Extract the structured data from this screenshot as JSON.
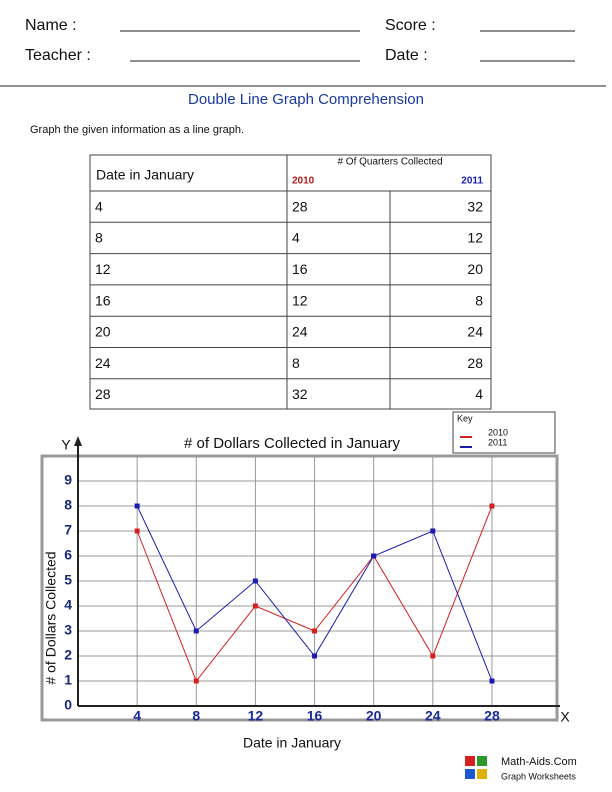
{
  "header": {
    "name_label": "Name :",
    "score_label": "Score :",
    "teacher_label": "Teacher :",
    "date_label": "Date :"
  },
  "title": "Double Line Graph Comprehension",
  "instructions": "Graph the given information as a line graph.",
  "table": {
    "date_header": "Date in January",
    "group_header": "# Of Quarters Collected",
    "col_2010": "2010",
    "col_2011": "2011",
    "rows": [
      [
        4,
        28,
        32
      ],
      [
        8,
        4,
        12
      ],
      [
        12,
        16,
        20
      ],
      [
        16,
        12,
        8
      ],
      [
        20,
        24,
        24
      ],
      [
        24,
        8,
        28
      ],
      [
        28,
        32,
        4
      ]
    ]
  },
  "chart_data": {
    "type": "line",
    "title": "# of Dollars Collected in January",
    "x_label": "Date in January",
    "y_label": "# of Dollars Collected",
    "y_axis_letter": "Y",
    "x_axis_letter": "X",
    "legend_title": "Key",
    "x": [
      4,
      8,
      12,
      16,
      20,
      24,
      28
    ],
    "series": [
      {
        "name": "2010",
        "color": "#d42020",
        "values": [
          7,
          1,
          4,
          3,
          6,
          2,
          8
        ]
      },
      {
        "name": "2011",
        "color": "#1a1ab0",
        "values": [
          8,
          3,
          5,
          2,
          6,
          7,
          1
        ]
      }
    ],
    "xlim": [
      0,
      32.4
    ],
    "ylim": [
      0,
      10
    ],
    "xticks": [
      4,
      8,
      12,
      16,
      20,
      24,
      28
    ],
    "yticks": [
      0,
      1,
      2,
      3,
      4,
      5,
      6,
      7,
      8,
      9
    ],
    "grid": true
  },
  "footer": {
    "brand": "Math-Aids.Com",
    "subtitle": "Graph Worksheets"
  }
}
